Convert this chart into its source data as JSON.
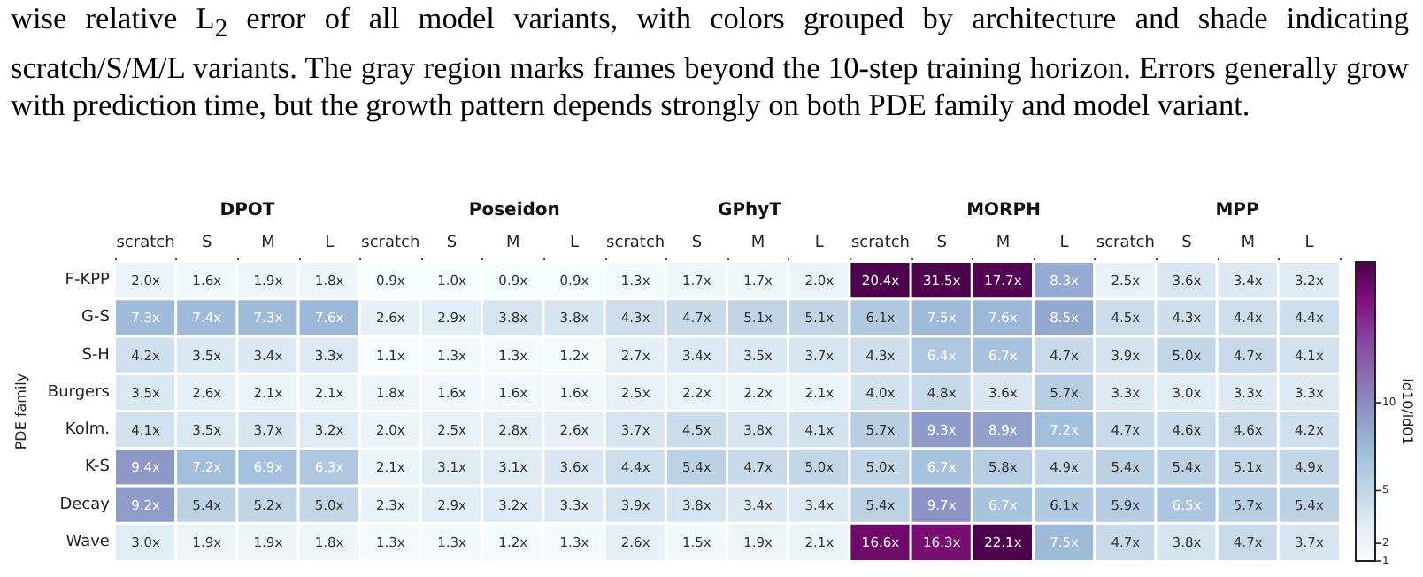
{
  "chart_data": {
    "type": "heatmap",
    "title": "wise relative L$_{2}$ error of all model variants, with colors grouped by architecture and shade indicating scratch/S/M/L variants. The gray region marks frames beyond the 10-step training horizon. Errors generally grow with prediction time, but the growth pattern depends strongly on both PDE family and model variant.",
    "ylabel": "PDE family",
    "clabel": "id10/id01",
    "annotations": [
      "DPOT",
      "Poseidon",
      "GPhyT",
      "MORPH",
      "MPP"
    ],
    "categories": [
      "scratch",
      "S",
      "M",
      "L",
      "scratch",
      "S",
      "M",
      "L",
      "scratch",
      "S",
      "M",
      "L",
      "scratch",
      "S",
      "M",
      "L",
      "scratch",
      "S",
      "M",
      "L"
    ],
    "y_categories": [
      "F-KPP",
      "G-S",
      "S-H",
      "Burgers",
      "Kolm.",
      "K-S",
      "Decay",
      "Wave"
    ],
    "cells": [
      [
        2.0,
        1.6,
        1.9,
        1.8,
        0.9,
        1.0,
        0.9,
        0.9,
        1.3,
        1.7,
        1.7,
        2.0,
        20.4,
        31.5,
        17.7,
        8.3,
        2.5,
        3.6,
        3.4,
        3.2
      ],
      [
        7.3,
        7.4,
        7.3,
        7.6,
        2.6,
        2.9,
        3.8,
        3.8,
        4.3,
        4.7,
        5.1,
        5.1,
        6.1,
        7.5,
        7.6,
        8.5,
        4.5,
        4.3,
        4.4,
        4.4
      ],
      [
        4.2,
        3.5,
        3.4,
        3.3,
        1.1,
        1.3,
        1.3,
        1.2,
        2.7,
        3.4,
        3.5,
        3.7,
        4.3,
        6.4,
        6.7,
        4.7,
        3.9,
        5.0,
        4.7,
        4.1
      ],
      [
        3.5,
        2.6,
        2.1,
        2.1,
        1.8,
        1.6,
        1.6,
        1.6,
        2.5,
        2.2,
        2.2,
        2.1,
        4.0,
        4.8,
        3.6,
        5.7,
        3.3,
        3.0,
        3.3,
        3.3
      ],
      [
        4.1,
        3.5,
        3.7,
        3.2,
        2.0,
        2.5,
        2.8,
        2.6,
        3.7,
        4.5,
        3.8,
        4.1,
        5.7,
        9.3,
        8.9,
        7.2,
        4.7,
        4.6,
        4.6,
        4.2
      ],
      [
        9.4,
        7.2,
        6.9,
        6.3,
        2.1,
        3.1,
        3.1,
        3.6,
        4.4,
        5.4,
        4.7,
        5.0,
        5.0,
        6.7,
        5.8,
        4.9,
        5.4,
        5.4,
        5.1,
        4.9
      ],
      [
        9.2,
        5.4,
        5.2,
        5.0,
        2.3,
        2.9,
        3.2,
        3.3,
        3.9,
        3.8,
        3.4,
        3.4,
        5.4,
        9.7,
        6.7,
        6.1,
        5.9,
        6.5,
        5.7,
        5.4
      ],
      [
        3.0,
        1.9,
        1.9,
        1.8,
        1.3,
        1.3,
        1.2,
        1.3,
        2.6,
        1.5,
        1.9,
        2.1,
        16.6,
        16.3,
        22.1,
        7.5,
        4.7,
        3.8,
        4.7,
        3.7
      ]
    ],
    "cell_labels": [
      [
        "2.0x",
        "1.6x",
        "1.9x",
        "1.8x",
        "0.9x",
        "1.0x",
        "0.9x",
        "0.9x",
        "1.3x",
        "1.7x",
        "1.7x",
        "2.0x",
        "20.4x",
        "31.5x",
        "17.7x",
        "8.3x",
        "2.5x",
        "3.6x",
        "3.4x",
        "3.2x"
      ],
      [
        "7.3x",
        "7.4x",
        "7.3x",
        "7.6x",
        "2.6x",
        "2.9x",
        "3.8x",
        "3.8x",
        "4.3x",
        "4.7x",
        "5.1x",
        "5.1x",
        "6.1x",
        "7.5x",
        "7.6x",
        "8.5x",
        "4.5x",
        "4.3x",
        "4.4x",
        "4.4x"
      ],
      [
        "4.2x",
        "3.5x",
        "3.4x",
        "3.3x",
        "1.1x",
        "1.3x",
        "1.3x",
        "1.2x",
        "2.7x",
        "3.4x",
        "3.5x",
        "3.7x",
        "4.3x",
        "6.4x",
        "6.7x",
        "4.7x",
        "3.9x",
        "5.0x",
        "4.7x",
        "4.1x"
      ],
      [
        "3.5x",
        "2.6x",
        "2.1x",
        "2.1x",
        "1.8x",
        "1.6x",
        "1.6x",
        "1.6x",
        "2.5x",
        "2.2x",
        "2.2x",
        "2.1x",
        "4.0x",
        "4.8x",
        "3.6x",
        "5.7x",
        "3.3x",
        "3.0x",
        "3.3x",
        "3.3x"
      ],
      [
        "4.1x",
        "3.5x",
        "3.7x",
        "3.2x",
        "2.0x",
        "2.5x",
        "2.8x",
        "2.6x",
        "3.7x",
        "4.5x",
        "3.8x",
        "4.1x",
        "5.7x",
        "9.3x",
        "8.9x",
        "7.2x",
        "4.7x",
        "4.6x",
        "4.6x",
        "4.2x"
      ],
      [
        "9.4x",
        "7.2x",
        "6.9x",
        "6.3x",
        "2.1x",
        "3.1x",
        "3.1x",
        "3.6x",
        "4.4x",
        "5.4x",
        "4.7x",
        "5.0x",
        "5.0x",
        "6.7x",
        "5.8x",
        "4.9x",
        "5.4x",
        "5.4x",
        "5.1x",
        "4.9x"
      ],
      [
        "9.2x",
        "5.4x",
        "5.2x",
        "5.0x",
        "2.3x",
        "2.9x",
        "3.2x",
        "3.3x",
        "3.9x",
        "3.8x",
        "3.4x",
        "3.4x",
        "5.4x",
        "9.7x",
        "6.7x",
        "6.1x",
        "5.9x",
        "6.5x",
        "5.7x",
        "5.4x"
      ],
      [
        "3.0x",
        "1.9x",
        "1.9x",
        "1.8x",
        "1.3x",
        "1.3x",
        "1.2x",
        "1.3x",
        "2.6x",
        "1.5x",
        "1.9x",
        "2.1x",
        "16.6x",
        "16.3x",
        "22.1x",
        "7.5x",
        "4.7x",
        "3.8x",
        "4.7x",
        "3.7x"
      ]
    ],
    "clim": [
      1,
      18
    ],
    "cticks": [
      1,
      2,
      5,
      10
    ]
  }
}
